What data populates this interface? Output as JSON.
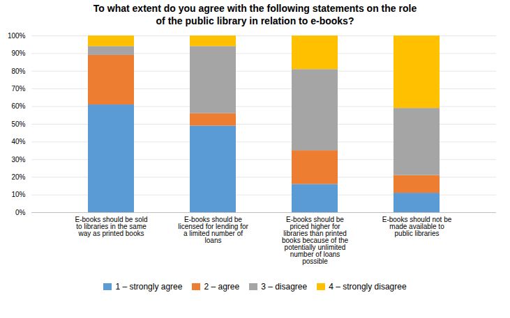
{
  "chart_data": {
    "type": "bar",
    "title": "To what extent do you agree with the following statements on the role\nof the public library in relation to e-books?",
    "stacked": true,
    "categories": [
      "E-books should be sold\nto libraries in the same\nway as printed books",
      "E-books should be\nlicensed for lending for\na limited number of\nloans",
      "E-books should be\npriced higher for\nlibraries than printed\nbooks because of the\npotentially unlimited\nnumber of loans\npossible",
      "E-books should not be\nmade available to\npublic libraries"
    ],
    "series": [
      {
        "name": "1 – strongly agree",
        "color": "#5B9BD5",
        "values": [
          61,
          49,
          16,
          11
        ]
      },
      {
        "name": "2 – agree",
        "color": "#ED7D31",
        "values": [
          28,
          7,
          19,
          10
        ]
      },
      {
        "name": "3 – disagree",
        "color": "#A5A5A5",
        "values": [
          5,
          38,
          46,
          38
        ]
      },
      {
        "name": "4 – strongly disagree",
        "color": "#FFC000",
        "values": [
          6,
          6,
          19,
          41
        ]
      }
    ],
    "ylim": [
      0,
      100
    ],
    "yticks": [
      {
        "value": 0,
        "label": "0%"
      },
      {
        "value": 10,
        "label": "10%"
      },
      {
        "value": 20,
        "label": "20%"
      },
      {
        "value": 30,
        "label": "30%"
      },
      {
        "value": 40,
        "label": "40%"
      },
      {
        "value": 50,
        "label": "50%"
      },
      {
        "value": 60,
        "label": "60%"
      },
      {
        "value": 70,
        "label": "70%"
      },
      {
        "value": 80,
        "label": "80%"
      },
      {
        "value": 90,
        "label": "90%"
      },
      {
        "value": 100,
        "label": "100%"
      }
    ],
    "grid": true,
    "legend": "bottom"
  }
}
